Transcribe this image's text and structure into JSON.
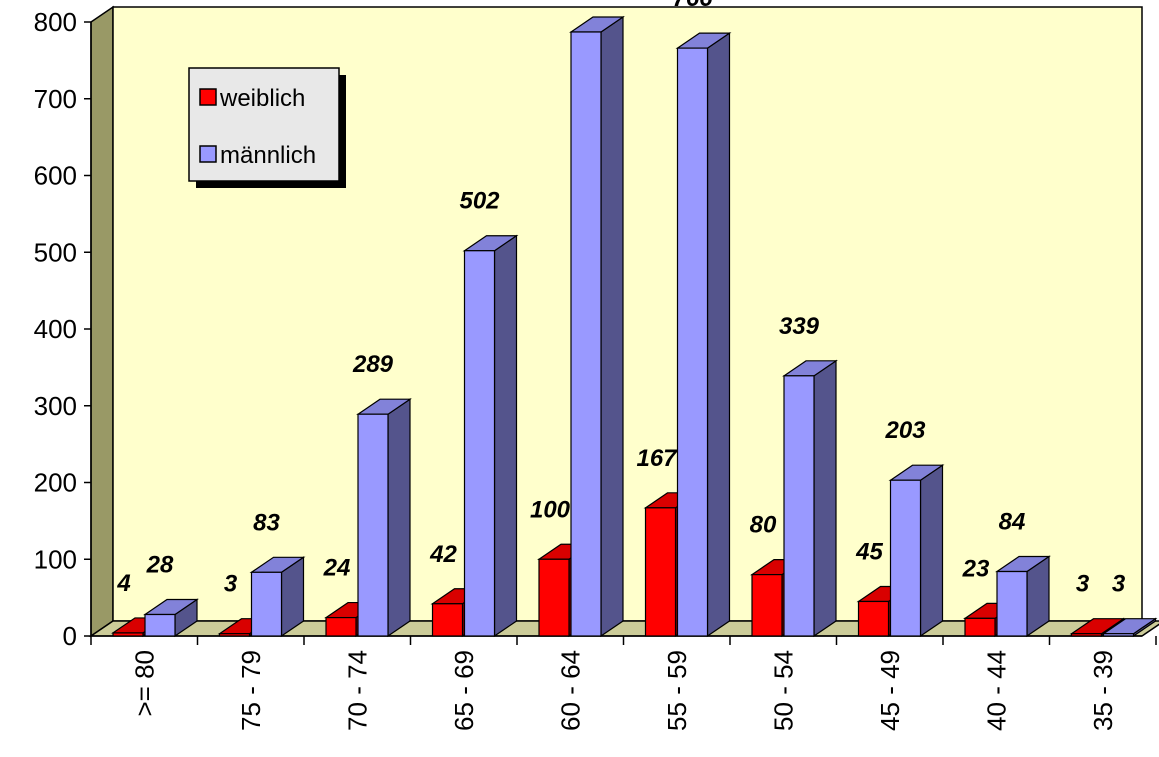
{
  "chart_data": {
    "type": "bar",
    "categories": [
      ">= 80",
      "75 - 79",
      "70 - 74",
      "65 - 69",
      "60 - 64",
      "55 - 59",
      "50 - 54",
      "45 - 49",
      "40 - 44",
      "35 - 39"
    ],
    "series": [
      {
        "name": "weiblich",
        "values": [
          4,
          3,
          24,
          42,
          100,
          167,
          80,
          45,
          23,
          3
        ],
        "color": "#ff0000"
      },
      {
        "name": "männlich",
        "values": [
          28,
          83,
          289,
          502,
          787,
          766,
          339,
          203,
          84,
          3
        ],
        "color": "#9999ff"
      }
    ],
    "ylim": [
      0,
      800
    ],
    "yticks": [
      0,
      100,
      200,
      300,
      400,
      500,
      600,
      700,
      800
    ],
    "grid": false,
    "legend": "top-left",
    "three_d": true,
    "wall_color": "#ffffcc",
    "floor_color": "#cccc99"
  }
}
